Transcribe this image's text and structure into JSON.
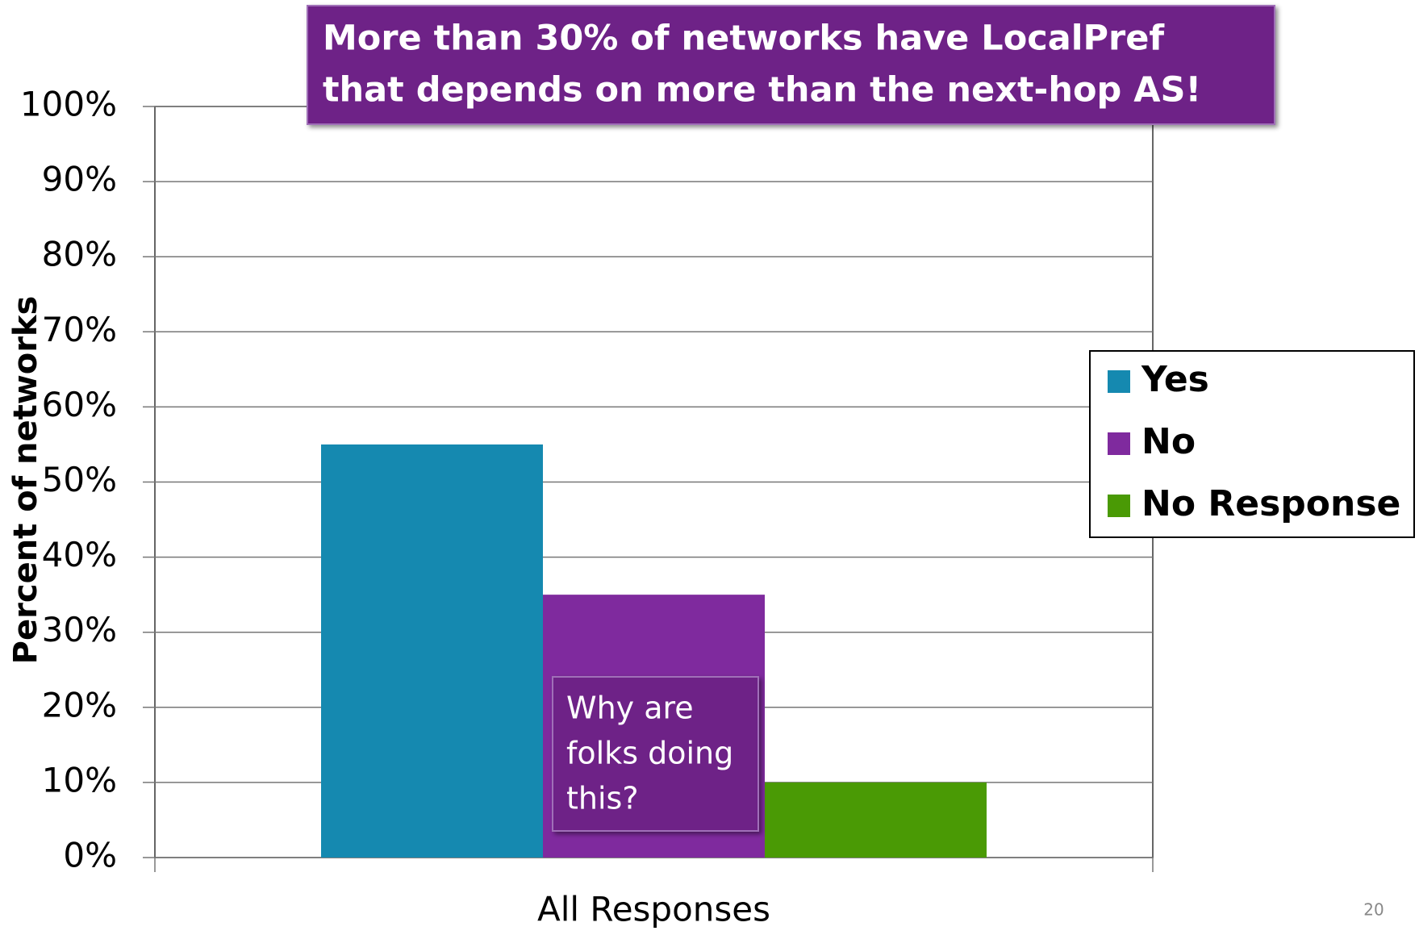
{
  "chart_data": {
    "type": "bar",
    "title": [
      "More than 30% of networks have LocalPref",
      "that depends on more than the next-hop AS!"
    ],
    "y_label": "Percent of networks",
    "categories": [
      "All Responses"
    ],
    "series": [
      {
        "name": "Yes",
        "color": "#1589b0",
        "values": [
          55
        ]
      },
      {
        "name": "No",
        "color": "#7f2a9e",
        "values": [
          35
        ]
      },
      {
        "name": "No Response",
        "color": "#4a9a05",
        "values": [
          10
        ]
      }
    ],
    "ylim": [
      0,
      100
    ],
    "yticks": [
      {
        "value": 0,
        "label": "0%"
      },
      {
        "value": 10,
        "label": "10%"
      },
      {
        "value": 20,
        "label": "20%"
      },
      {
        "value": 30,
        "label": "30%"
      },
      {
        "value": 40,
        "label": "40%"
      },
      {
        "value": 50,
        "label": "50%"
      },
      {
        "value": 60,
        "label": "60%"
      },
      {
        "value": 70,
        "label": "70%"
      },
      {
        "value": 80,
        "label": "80%"
      },
      {
        "value": 90,
        "label": "90%"
      },
      {
        "value": 100,
        "label": "100%"
      }
    ],
    "grid": true,
    "legend": "right",
    "annotation": [
      "Why are",
      "folks doing",
      "this?"
    ]
  },
  "page_number": "20"
}
